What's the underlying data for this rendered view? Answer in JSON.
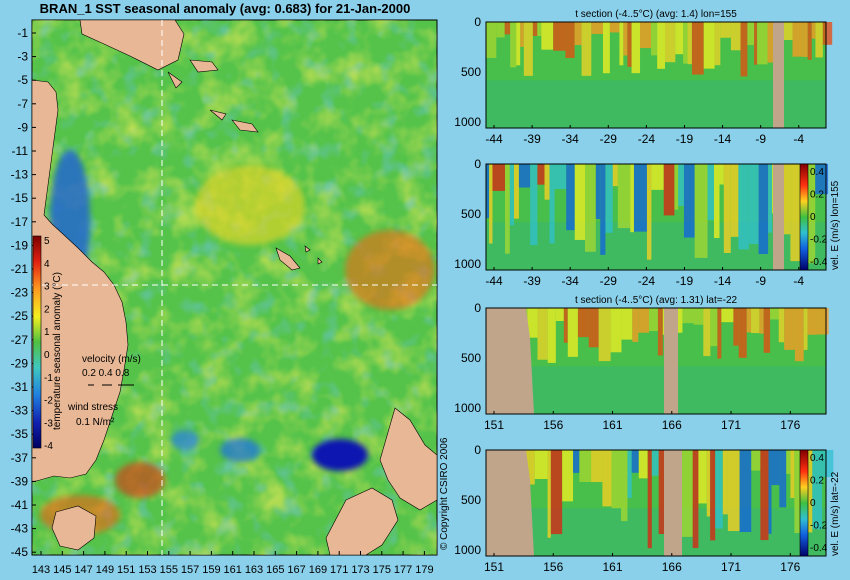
{
  "colors": {
    "background": "#8ad0ea",
    "land": "#e8b795",
    "section_land": "#c0a58a",
    "ocean_base": "#55c34a"
  },
  "map": {
    "title": "BRAN_1 SST seasonal anomaly (avg: 0.683) for 21-Jan-2000",
    "lat_ticks": [
      "-1",
      "-3",
      "-5",
      "-7",
      "-9",
      "-11",
      "-13",
      "-15",
      "-17",
      "-19",
      "-21",
      "-23",
      "-25",
      "-27",
      "-29",
      "-31",
      "-33",
      "-35",
      "-37",
      "-39",
      "-41",
      "-43",
      "-45"
    ],
    "lon_ticks": [
      "143",
      "145",
      "147",
      "149",
      "151",
      "153",
      "155",
      "157",
      "159",
      "161",
      "163",
      "165",
      "167",
      "169",
      "171",
      "173",
      "175",
      "177",
      "179"
    ],
    "colorbar": {
      "label": "temperature seasonal anomaly (°C)",
      "ticks": [
        "5",
        "4",
        "3",
        "2",
        "1",
        "0",
        "-1",
        "-2",
        "-3",
        "-4"
      ]
    },
    "velocity_label": "velocity (m/s)",
    "velocity_scale": "0.2 0.4 0.8",
    "wind_label": "wind stress",
    "wind_scale": "0.1 N/m²",
    "copyright": "© Copyright CSIRO 2006",
    "crosshair": {
      "lon": 155,
      "lat": -22
    }
  },
  "chart_data": [
    {
      "type": "heatmap",
      "title": "t section (-4..5°C) (avg: 1.4) lon=155",
      "x_ticks": [
        "-44",
        "-39",
        "-34",
        "-29",
        "-24",
        "-19",
        "-14",
        "-9",
        "-4"
      ],
      "y_ticks": [
        "0",
        "500",
        "1000"
      ],
      "ylim": [
        0,
        1000
      ]
    },
    {
      "type": "heatmap",
      "title": "",
      "x_ticks": [
        "-44",
        "-39",
        "-34",
        "-29",
        "-24",
        "-19",
        "-14",
        "-9",
        "-4"
      ],
      "y_ticks": [
        "0",
        "500",
        "1000"
      ],
      "ylim": [
        0,
        1000
      ],
      "colorbar": {
        "label": "vel. E (m/s) lon=155",
        "ticks": [
          "0.4",
          "0.2",
          "0",
          "-0.2",
          "-0.4"
        ]
      }
    },
    {
      "type": "heatmap",
      "title": "t section (-4..5°C) (avg: 1.31) lat=-22",
      "x_ticks": [
        "151",
        "156",
        "161",
        "166",
        "171",
        "176"
      ],
      "y_ticks": [
        "0",
        "500",
        "1000"
      ],
      "ylim": [
        0,
        1000
      ]
    },
    {
      "type": "heatmap",
      "title": "",
      "x_ticks": [
        "151",
        "156",
        "161",
        "166",
        "171",
        "176"
      ],
      "y_ticks": [
        "0",
        "500",
        "1000"
      ],
      "ylim": [
        0,
        1000
      ],
      "colorbar": {
        "label": "vel. E (m/s) lat=-22",
        "ticks": [
          "0.4",
          "0.2",
          "0",
          "-0.2",
          "-0.4"
        ]
      }
    }
  ]
}
